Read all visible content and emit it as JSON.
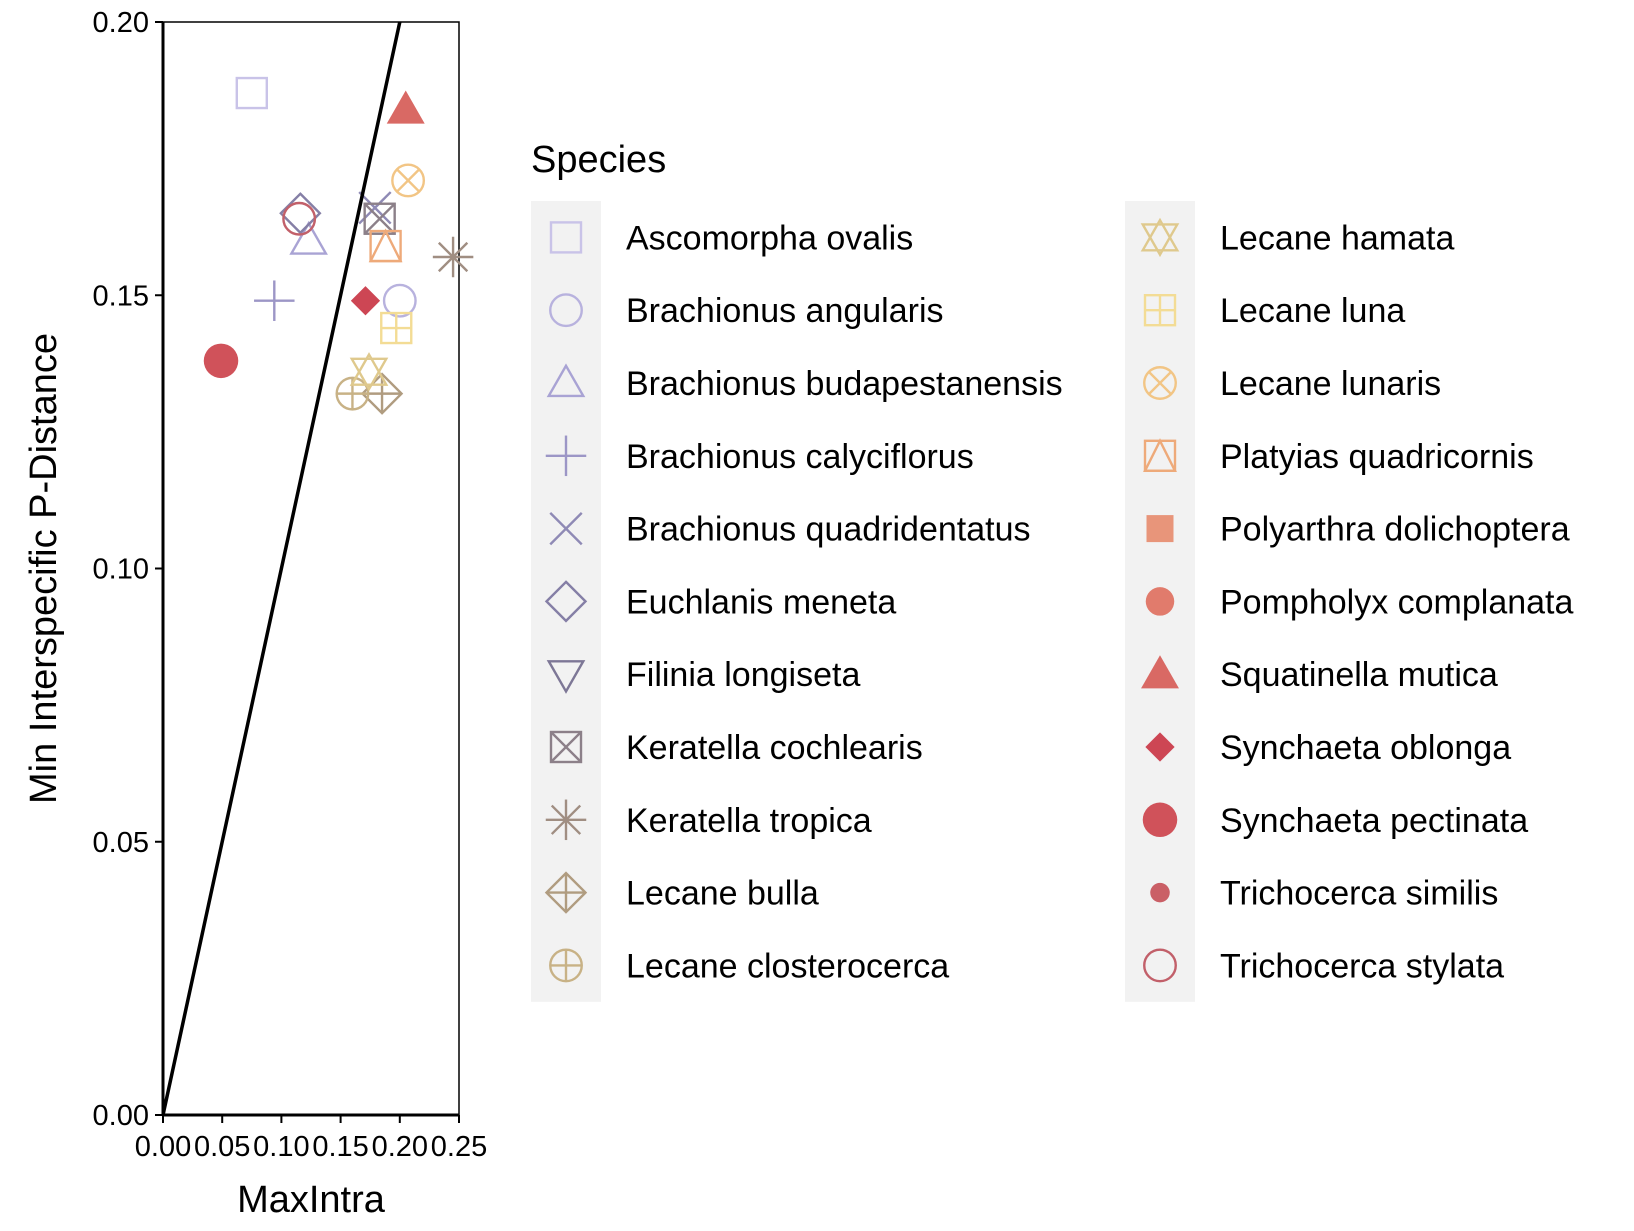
{
  "chart_data": {
    "type": "scatter",
    "title": "",
    "xlabel": "MaxIntra",
    "ylabel": "Min Interspecific P-Distance",
    "xlim": [
      0,
      0.25
    ],
    "ylim": [
      0,
      0.2
    ],
    "x_ticks": [
      {
        "value": 0,
        "label": "0.00"
      },
      {
        "value": 0.05,
        "label": "0.05"
      },
      {
        "value": 0.1,
        "label": "0.10"
      },
      {
        "value": 0.15,
        "label": "0.15"
      },
      {
        "value": 0.2,
        "label": "0.20"
      },
      {
        "value": 0.25,
        "label": "0.25"
      }
    ],
    "y_ticks": [
      {
        "value": 0,
        "label": "0.00"
      },
      {
        "value": 0.05,
        "label": "0.05"
      },
      {
        "value": 0.1,
        "label": "0.10"
      },
      {
        "value": 0.15,
        "label": "0.15"
      },
      {
        "value": 0.2,
        "label": "0.20"
      }
    ],
    "reference_line": {
      "slope": 1,
      "intercept": 0
    },
    "grid": false,
    "legend": {
      "title": "Species",
      "placement": "right",
      "columns": 2
    },
    "series": [
      {
        "name": "Ascomorpha ovalis",
        "shape": "square-open",
        "color": "#c9c3e8",
        "x": 0.075,
        "y": 0.187
      },
      {
        "name": "Brachionus angularis",
        "shape": "circle-open",
        "color": "#b8b2de",
        "x": 0.2,
        "y": 0.149
      },
      {
        "name": "Brachionus budapestanensis",
        "shape": "triangle-open",
        "color": "#a9a3d4",
        "x": 0.123,
        "y": 0.16
      },
      {
        "name": "Brachionus calyciflorus",
        "shape": "plus",
        "color": "#9c96c6",
        "x": 0.094,
        "y": 0.149
      },
      {
        "name": "Brachionus quadridentatus",
        "shape": "cross",
        "color": "#8f8ab5",
        "x": 0.179,
        "y": 0.166
      },
      {
        "name": "Euchlanis meneta",
        "shape": "diamond-open",
        "color": "#857fa6",
        "x": 0.116,
        "y": 0.165
      },
      {
        "name": "Filinia longiseta",
        "shape": "triangle-down-open",
        "color": "#7d7796",
        "x": null,
        "y": null
      },
      {
        "name": "Keratella cochlearis",
        "shape": "square-cross",
        "color": "#8c8089",
        "x": 0.183,
        "y": 0.164
      },
      {
        "name": "Keratella tropica",
        "shape": "asterisk",
        "color": "#a08e82",
        "x": 0.245,
        "y": 0.157
      },
      {
        "name": "Lecane bulla",
        "shape": "diamond-plus",
        "color": "#b09c80",
        "x": 0.185,
        "y": 0.132
      },
      {
        "name": "Lecane closterocerca",
        "shape": "circle-plus",
        "color": "#c8b286",
        "x": 0.16,
        "y": 0.132
      },
      {
        "name": "Lecane hamata",
        "shape": "triangle-updown",
        "color": "#dfc98d",
        "x": 0.174,
        "y": 0.136
      },
      {
        "name": "Lecane luna",
        "shape": "square-plus",
        "color": "#f3dc95",
        "x": 0.197,
        "y": 0.144
      },
      {
        "name": "Lecane lunaris",
        "shape": "circle-cross",
        "color": "#f2c585",
        "x": 0.207,
        "y": 0.171
      },
      {
        "name": "Platyias quadricornis",
        "shape": "square-triangle",
        "color": "#eeaa7a",
        "x": 0.188,
        "y": 0.159
      },
      {
        "name": "Polyarthra dolichoptera",
        "shape": "square-filled",
        "color": "#e8957a",
        "x": null,
        "y": null
      },
      {
        "name": "Pompholyx complanata",
        "shape": "circle-filled",
        "color": "#e17b6c",
        "x": null,
        "y": null
      },
      {
        "name": "Squatinella mutica",
        "shape": "triangle-filled",
        "color": "#d96964",
        "x": 0.205,
        "y": 0.184
      },
      {
        "name": "Synchaeta oblonga",
        "shape": "diamond-filled",
        "color": "#cd4654",
        "x": 0.171,
        "y": 0.149
      },
      {
        "name": "Synchaeta pectinata",
        "shape": "circle-filled-large",
        "color": "#d0525a",
        "x": 0.049,
        "y": 0.138
      },
      {
        "name": "Trichocerca similis",
        "shape": "circle-filled-small",
        "color": "#ca5f66",
        "x": null,
        "y": null
      },
      {
        "name": "Trichocerca stylata",
        "shape": "circle-open",
        "color": "#c2606a",
        "x": 0.115,
        "y": 0.164
      }
    ]
  }
}
